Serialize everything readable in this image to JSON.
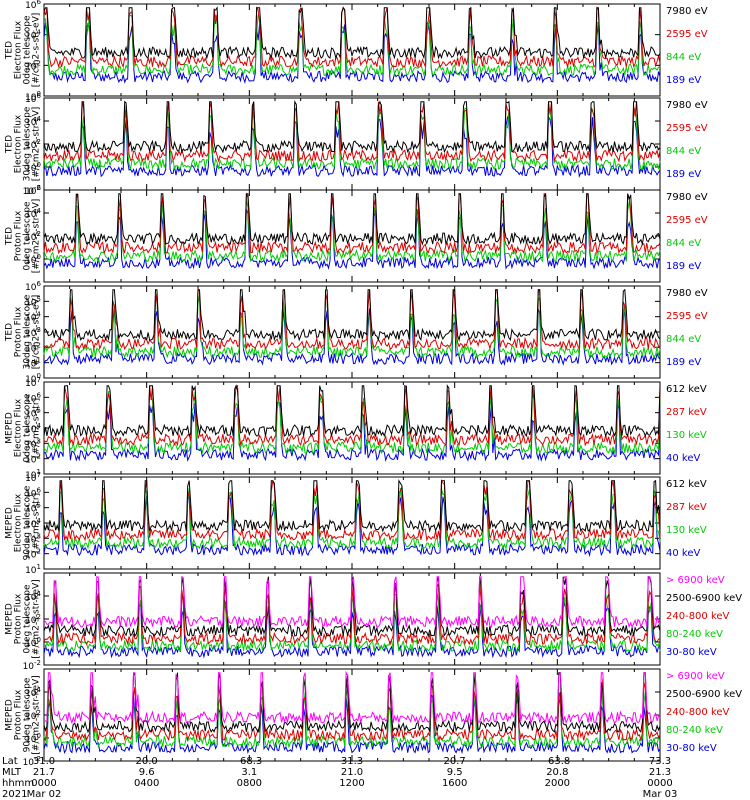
{
  "chart_data": {
    "type": "line",
    "x_axis": {
      "rows": [
        {
          "label": "Lat",
          "values": [
            "31.0",
            "20.0",
            "-68.3",
            "31.3",
            "20.7",
            "-63.8",
            "73.3"
          ]
        },
        {
          "label": "MLT",
          "values": [
            "21.7",
            "9.6",
            "3.1",
            "21.0",
            "9.5",
            "20.8",
            "21.3"
          ]
        },
        {
          "label": "hhmm",
          "values": [
            "0000",
            "0400",
            "0800",
            "1200",
            "1600",
            "2000",
            "0000"
          ]
        },
        {
          "label": "2021",
          "values": [
            "Mar 02",
            "",
            "",
            "",
            "",
            "",
            "Mar 03"
          ]
        }
      ],
      "range_hhmm": [
        "0000",
        "2400"
      ]
    },
    "panels": [
      {
        "ylabel": [
          "TED",
          "Electron Flux",
          "0deg telescope",
          "[#/cm2-s-str-eV]"
        ],
        "yticks": [
          {
            "exp": "6",
            "value": 1000000
          },
          {
            "exp": "4",
            "value": 10000
          },
          {
            "exp": "2",
            "value": 100
          },
          {
            "exp": "0",
            "value": 1
          }
        ],
        "ylim": [
          1,
          1000000
        ],
        "log": true,
        "series": [
          {
            "name": "7980 eV",
            "color": "#000000"
          },
          {
            "name": "2595 eV",
            "color": "#dd0000"
          },
          {
            "name": "844 eV",
            "color": "#00cc00"
          },
          {
            "name": "189 eV",
            "color": "#0000dd"
          }
        ]
      },
      {
        "ylabel": [
          "TED",
          "Electron Flux",
          "30deg telescope",
          "[#/cm2-s-str-eV]"
        ],
        "yticks": [
          {
            "exp": "6",
            "value": 1000000
          },
          {
            "exp": "4",
            "value": 10000
          },
          {
            "exp": "2",
            "value": 100
          },
          {
            "exp": "0",
            "value": 1
          },
          {
            "exp": "-2",
            "value": 0.01
          }
        ],
        "ylim": [
          0.01,
          1000000
        ],
        "log": true,
        "series": [
          {
            "name": "7980 eV",
            "color": "#000000"
          },
          {
            "name": "2595 eV",
            "color": "#dd0000"
          },
          {
            "name": "844 eV",
            "color": "#00cc00"
          },
          {
            "name": "189 eV",
            "color": "#0000dd"
          }
        ]
      },
      {
        "ylabel": [
          "TED",
          "Proton Flux",
          "0deg telescope",
          "[#/cm2-s-str-eV]"
        ],
        "yticks": [
          {
            "exp": "6",
            "value": 1000000
          },
          {
            "exp": "4",
            "value": 10000
          },
          {
            "exp": "2",
            "value": 100
          },
          {
            "exp": "0",
            "value": 1
          }
        ],
        "ylim": [
          0.01,
          1000000
        ],
        "log": true,
        "series": [
          {
            "name": "7980 eV",
            "color": "#000000"
          },
          {
            "name": "2595 eV",
            "color": "#dd0000"
          },
          {
            "name": "844 eV",
            "color": "#00cc00"
          },
          {
            "name": "189 eV",
            "color": "#0000dd"
          }
        ]
      },
      {
        "ylabel": [
          "TED",
          "Proton Flux",
          "30deg telescope",
          "[#/cm2-s-str-eV]"
        ],
        "yticks": [
          {
            "exp": "6",
            "value": 1000000
          },
          {
            "exp": "5",
            "value": 100000
          },
          {
            "exp": "4",
            "value": 10000
          },
          {
            "exp": "3",
            "value": 1000
          },
          {
            "exp": "2",
            "value": 100
          },
          {
            "exp": "1",
            "value": 10
          },
          {
            "exp": "0",
            "value": 1
          }
        ],
        "ylim": [
          1,
          1000000
        ],
        "log": true,
        "series": [
          {
            "name": "7980 eV",
            "color": "#000000"
          },
          {
            "name": "2595 eV",
            "color": "#dd0000"
          },
          {
            "name": "844 eV",
            "color": "#00cc00"
          },
          {
            "name": "189 eV",
            "color": "#0000dd"
          }
        ]
      },
      {
        "ylabel": [
          "MEPED",
          "Electron Flux",
          "0deg telescope",
          "[#/cm2-s-str]"
        ],
        "yticks": [
          {
            "exp": "7",
            "value": 10000000
          },
          {
            "exp": "6",
            "value": 1000000
          },
          {
            "exp": "5",
            "value": 100000
          },
          {
            "exp": "4",
            "value": 10000
          },
          {
            "exp": "3",
            "value": 1000
          },
          {
            "exp": "2",
            "value": 100
          },
          {
            "exp": "1",
            "value": 10
          }
        ],
        "ylim": [
          10,
          10000000
        ],
        "log": true,
        "series": [
          {
            "name": "612 keV",
            "color": "#000000"
          },
          {
            "name": "287 keV",
            "color": "#dd0000"
          },
          {
            "name": "130 keV",
            "color": "#00cc00"
          },
          {
            "name": "40 keV",
            "color": "#0000dd"
          }
        ]
      },
      {
        "ylabel": [
          "MEPED",
          "Electron Flux",
          "90deg telescope",
          "[#/cm2-s-str]"
        ],
        "yticks": [
          {
            "exp": "7",
            "value": 10000000
          },
          {
            "exp": "6",
            "value": 1000000
          },
          {
            "exp": "5",
            "value": 100000
          },
          {
            "exp": "4",
            "value": 10000
          },
          {
            "exp": "3",
            "value": 1000
          },
          {
            "exp": "2",
            "value": 100
          },
          {
            "exp": "1",
            "value": 10
          }
        ],
        "ylim": [
          10,
          10000000
        ],
        "log": true,
        "series": [
          {
            "name": "612 keV",
            "color": "#000000"
          },
          {
            "name": "287 keV",
            "color": "#dd0000"
          },
          {
            "name": "130 keV",
            "color": "#00cc00"
          },
          {
            "name": "40 keV",
            "color": "#0000dd"
          }
        ]
      },
      {
        "ylabel": [
          "MEPED",
          "Proton Flux",
          "0deg telescope",
          "[#/cm2-s-str-keV]"
        ],
        "yticks": [
          {
            "exp": "4",
            "value": 10000
          },
          {
            "exp": "2",
            "value": 100
          },
          {
            "exp": "0",
            "value": 1
          },
          {
            "exp": "-2",
            "value": 0.01
          }
        ],
        "ylim": [
          0.01,
          1000000
        ],
        "log": true,
        "series": [
          {
            "name": "> 6900 keV",
            "color": "#ff00ff"
          },
          {
            "name": "2500-6900 keV",
            "color": "#000000"
          },
          {
            "name": "240-800 keV",
            "color": "#dd0000"
          },
          {
            "name": "80-240 keV",
            "color": "#00cc00"
          },
          {
            "name": "30-80 keV",
            "color": "#0000dd"
          }
        ]
      },
      {
        "ylabel": [
          "MEPED",
          "Proton Flux",
          "90deg telescope",
          "[#/cm2-s-str-keV]"
        ],
        "yticks": [
          {
            "exp": "4",
            "value": 10000
          },
          {
            "exp": "2",
            "value": 100
          },
          {
            "exp": "0",
            "value": 1
          },
          {
            "exp": "-2",
            "value": 0.01
          }
        ],
        "ylim": [
          0.01,
          1000000
        ],
        "log": true,
        "series": [
          {
            "name": "> 6900 keV",
            "color": "#ff00ff"
          },
          {
            "name": "2500-6900 keV",
            "color": "#000000"
          },
          {
            "name": "240-800 keV",
            "color": "#dd0000"
          },
          {
            "name": "80-240 keV",
            "color": "#00cc00"
          },
          {
            "name": "30-80 keV",
            "color": "#0000dd"
          }
        ]
      }
    ]
  }
}
